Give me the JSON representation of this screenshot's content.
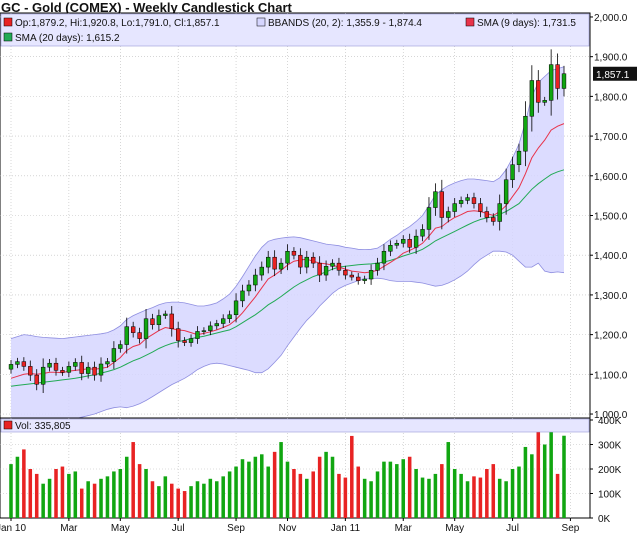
{
  "title": "GC - Gold (COMEX) - Weekly Candlestick Chart",
  "colors": {
    "up": "#11a611",
    "down": "#e82323",
    "sma9": "#e8334a",
    "sma20": "#22aa55",
    "band_fill": "#d6d6ff",
    "band_line": "#8e8ee0",
    "grid": "#bdbdbd",
    "legend_bg": "#e6e6ff",
    "last_tag": "#111111"
  },
  "legend": {
    "ohlc": "Op:1,879.2, Hi:1,920.8, Lo:1,791.0, Cl:1,857.1",
    "bbands": "BBANDS (20, 2): 1,355.9 - 1,874.4",
    "sma9": "SMA (9 days): 1,731.5",
    "sma20": "SMA (20 days): 1,615.2",
    "volume": "Vol: 335,805"
  },
  "last_price_tag": "1,857.1",
  "price_axis": {
    "min": 990,
    "max": 2010,
    "ticks": [
      "1,000.0",
      "1,100.0",
      "1,200.0",
      "1,300.0",
      "1,400.0",
      "1,500.0",
      "1,600.0",
      "1,700.0",
      "1,800.0",
      "1,900.0",
      "2,000.0"
    ],
    "tick_values": [
      1000,
      1100,
      1200,
      1300,
      1400,
      1500,
      1600,
      1700,
      1800,
      1900,
      2000
    ]
  },
  "volume_axis": {
    "max": 400000,
    "ticks": [
      "0K",
      "100K",
      "200K",
      "300K",
      "400K"
    ],
    "tick_values": [
      0,
      100000,
      200000,
      300000,
      400000
    ]
  },
  "x_axis": {
    "labels": [
      "Jan 10",
      "Mar",
      "May",
      "Jul",
      "Sep",
      "Nov",
      "Jan 11",
      "Mar",
      "May",
      "Jul",
      "Sep"
    ],
    "label_weeks": [
      0,
      9,
      17,
      26,
      35,
      43,
      52,
      61,
      69,
      78,
      87
    ]
  },
  "chart_data": {
    "type": "candlestick",
    "title": "GC - Gold (COMEX) - Weekly Candlestick Chart",
    "close": [
      1125,
      1132,
      1120,
      1098,
      1075,
      1118,
      1128,
      1110,
      1105,
      1120,
      1130,
      1102,
      1118,
      1098,
      1126,
      1132,
      1165,
      1175,
      1220,
      1205,
      1190,
      1240,
      1225,
      1248,
      1252,
      1215,
      1185,
      1180,
      1190,
      1208,
      1210,
      1222,
      1228,
      1240,
      1250,
      1285,
      1310,
      1325,
      1350,
      1370,
      1395,
      1365,
      1380,
      1410,
      1400,
      1370,
      1395,
      1380,
      1350,
      1372,
      1380,
      1362,
      1350,
      1345,
      1336,
      1340,
      1362,
      1380,
      1410,
      1425,
      1430,
      1440,
      1420,
      1448,
      1465,
      1520,
      1560,
      1495,
      1510,
      1530,
      1538,
      1545,
      1530,
      1510,
      1495,
      1485,
      1530,
      1590,
      1628,
      1662,
      1750,
      1840,
      1785,
      1790,
      1880,
      1820,
      1857
    ],
    "volume": [
      220000,
      250000,
      280000,
      200000,
      180000,
      140000,
      160000,
      200000,
      210000,
      180000,
      190000,
      120000,
      150000,
      140000,
      160000,
      170000,
      190000,
      200000,
      250000,
      310000,
      220000,
      200000,
      150000,
      130000,
      170000,
      140000,
      120000,
      110000,
      130000,
      150000,
      140000,
      160000,
      150000,
      170000,
      190000,
      210000,
      240000,
      230000,
      250000,
      260000,
      210000,
      270000,
      310000,
      230000,
      200000,
      180000,
      160000,
      190000,
      250000,
      270000,
      250000,
      180000,
      165000,
      335000,
      210000,
      160000,
      150000,
      190000,
      230000,
      230000,
      220000,
      240000,
      250000,
      200000,
      165000,
      160000,
      180000,
      220000,
      310000,
      200000,
      180000,
      150000,
      170000,
      165000,
      200000,
      220000,
      160000,
      150000,
      200000,
      210000,
      290000,
      260000,
      380000,
      300000,
      360000,
      180000,
      335805
    ],
    "sma9": [
      1090,
      1095,
      1100,
      1102,
      1100,
      1102,
      1105,
      1105,
      1104,
      1108,
      1110,
      1112,
      1114,
      1113,
      1115,
      1118,
      1130,
      1142,
      1160,
      1170,
      1175,
      1190,
      1200,
      1210,
      1218,
      1215,
      1212,
      1210,
      1205,
      1200,
      1203,
      1207,
      1212,
      1218,
      1225,
      1238,
      1255,
      1275,
      1295,
      1318,
      1340,
      1350,
      1362,
      1375,
      1385,
      1388,
      1390,
      1385,
      1380,
      1378,
      1375,
      1370,
      1365,
      1360,
      1358,
      1356,
      1358,
      1362,
      1372,
      1382,
      1392,
      1405,
      1412,
      1420,
      1430,
      1448,
      1468,
      1472,
      1485,
      1495,
      1502,
      1510,
      1512,
      1510,
      1505,
      1500,
      1510,
      1525,
      1548,
      1570,
      1605,
      1645,
      1670,
      1690,
      1715,
      1725,
      1731.5
    ],
    "sma20": [
      1070,
      1072,
      1074,
      1076,
      1078,
      1080,
      1082,
      1084,
      1086,
      1088,
      1090,
      1093,
      1096,
      1099,
      1103,
      1107,
      1112,
      1118,
      1126,
      1134,
      1140,
      1148,
      1156,
      1165,
      1172,
      1178,
      1182,
      1186,
      1190,
      1193,
      1196,
      1200,
      1204,
      1208,
      1212,
      1220,
      1230,
      1240,
      1250,
      1262,
      1275,
      1285,
      1296,
      1308,
      1320,
      1330,
      1338,
      1346,
      1352,
      1358,
      1365,
      1370,
      1372,
      1374,
      1376,
      1377,
      1378,
      1380,
      1383,
      1387,
      1392,
      1398,
      1403,
      1408,
      1415,
      1425,
      1436,
      1444,
      1452,
      1460,
      1468,
      1476,
      1484,
      1490,
      1494,
      1497,
      1503,
      1510,
      1520,
      1530,
      1548,
      1566,
      1580,
      1592,
      1603,
      1610,
      1615.2
    ],
    "bb_upper": [
      1190,
      1195,
      1200,
      1198,
      1195,
      1193,
      1192,
      1191,
      1190,
      1192,
      1194,
      1196,
      1198,
      1200,
      1202,
      1205,
      1212,
      1222,
      1238,
      1248,
      1255,
      1262,
      1268,
      1275,
      1280,
      1282,
      1282,
      1280,
      1276,
      1272,
      1272,
      1275,
      1280,
      1290,
      1302,
      1322,
      1346,
      1372,
      1398,
      1420,
      1435,
      1440,
      1443,
      1445,
      1446,
      1444,
      1440,
      1436,
      1432,
      1428,
      1426,
      1424,
      1420,
      1418,
      1415,
      1414,
      1415,
      1418,
      1428,
      1440,
      1450,
      1462,
      1472,
      1485,
      1500,
      1525,
      1552,
      1565,
      1575,
      1582,
      1588,
      1592,
      1592,
      1590,
      1588,
      1585,
      1595,
      1615,
      1645,
      1680,
      1735,
      1800,
      1835,
      1850,
      1865,
      1870,
      1874.4
    ],
    "bb_lower": [
      950,
      952,
      955,
      958,
      962,
      966,
      970,
      975,
      980,
      985,
      988,
      992,
      996,
      1000,
      1006,
      1012,
      1016,
      1018,
      1016,
      1020,
      1026,
      1034,
      1044,
      1054,
      1064,
      1074,
      1082,
      1090,
      1100,
      1112,
      1120,
      1126,
      1128,
      1126,
      1122,
      1118,
      1114,
      1110,
      1104,
      1104,
      1114,
      1130,
      1148,
      1172,
      1194,
      1216,
      1236,
      1252,
      1272,
      1288,
      1304,
      1316,
      1324,
      1330,
      1336,
      1340,
      1341,
      1342,
      1340,
      1336,
      1334,
      1334,
      1334,
      1332,
      1330,
      1326,
      1322,
      1324,
      1330,
      1338,
      1348,
      1360,
      1376,
      1390,
      1400,
      1410,
      1410,
      1408,
      1400,
      1385,
      1370,
      1370,
      1380,
      1360,
      1356,
      1358,
      1355.9
    ]
  }
}
